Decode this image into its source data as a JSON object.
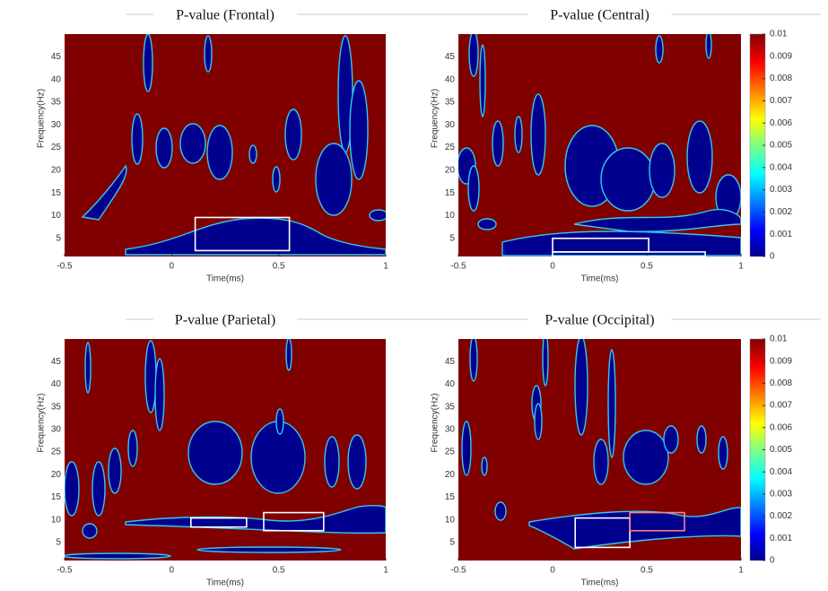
{
  "chart_data": [
    {
      "type": "heatmap",
      "title": "P-value (Frontal)",
      "x_label": "Time(ms)",
      "y_label": "Frequency(Hz)",
      "xlim": [
        -0.5,
        1
      ],
      "ylim": [
        1,
        50
      ],
      "xticks": [
        -0.5,
        0,
        0.5,
        1
      ],
      "yticks": [
        5,
        10,
        15,
        20,
        25,
        30,
        35,
        40,
        45
      ],
      "boxes": [
        {
          "x": [
            0.11,
            0.55
          ],
          "y": [
            2.3,
            9.6
          ],
          "color": "#ffffff"
        }
      ]
    },
    {
      "type": "heatmap",
      "title": "P-value (Central)",
      "x_label": "Time(ms)",
      "y_label": "Frequency(Hz)",
      "xlim": [
        -0.5,
        1
      ],
      "ylim": [
        1,
        50
      ],
      "xticks": [
        -0.5,
        0,
        0.5,
        1
      ],
      "yticks": [
        5,
        10,
        15,
        20,
        25,
        30,
        35,
        40,
        45
      ],
      "boxes": [
        {
          "x": [
            0,
            0.51
          ],
          "y": [
            2,
            5
          ],
          "color": "#ffffff"
        },
        {
          "x": [
            0,
            0.81
          ],
          "y": [
            1,
            2
          ],
          "color": "#ffffff"
        }
      ],
      "colorbar": {
        "lim": [
          0,
          0.01
        ],
        "ticks": [
          0,
          0.001,
          0.002,
          0.003,
          0.004,
          0.005,
          0.006,
          0.007,
          0.008,
          0.009,
          0.01
        ]
      }
    },
    {
      "type": "heatmap",
      "title": "P-value (Parietal)",
      "x_label": "Time(ms)",
      "y_label": "Frequency(Hz)",
      "xlim": [
        -0.5,
        1
      ],
      "ylim": [
        1,
        50
      ],
      "xticks": [
        -0.5,
        0,
        0.5,
        1
      ],
      "yticks": [
        5,
        10,
        15,
        20,
        25,
        30,
        35,
        40,
        45
      ],
      "boxes": [
        {
          "x": [
            0.09,
            0.35
          ],
          "y": [
            8.4,
            10.4
          ],
          "color": "#ffffff"
        },
        {
          "x": [
            0.43,
            0.71
          ],
          "y": [
            7.6,
            11.6
          ],
          "color": "#ffffff"
        }
      ]
    },
    {
      "type": "heatmap",
      "title": "P-value (Occipital)",
      "x_label": "Time(ms)",
      "y_label": "Frequency(Hz)",
      "xlim": [
        -0.5,
        1
      ],
      "ylim": [
        1,
        50
      ],
      "xticks": [
        -0.5,
        0,
        0.5,
        1
      ],
      "yticks": [
        5,
        10,
        15,
        20,
        25,
        30,
        35,
        40,
        45
      ],
      "boxes": [
        {
          "x": [
            0.12,
            0.41
          ],
          "y": [
            3.9,
            10.4
          ],
          "color": "#ffffff"
        },
        {
          "x": [
            0.41,
            0.7
          ],
          "y": [
            7.6,
            11.6
          ],
          "color": "#ff8080"
        }
      ],
      "colorbar": {
        "lim": [
          0,
          0.01
        ],
        "ticks": [
          0,
          0.001,
          0.002,
          0.003,
          0.004,
          0.005,
          0.006,
          0.007,
          0.008,
          0.009,
          0.01
        ]
      }
    }
  ]
}
